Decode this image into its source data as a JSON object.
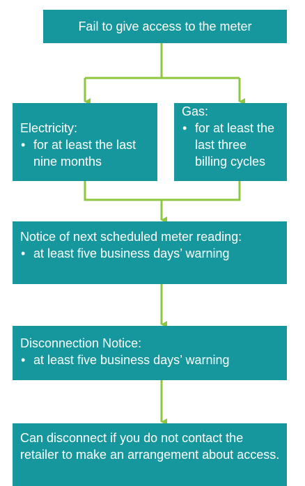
{
  "nodes": [
    {
      "text": "Fail to give access to the meter"
    },
    {
      "title": "Electricity:",
      "bullets": [
        "for at least the last nine months"
      ]
    },
    {
      "title": "Gas:",
      "bullets": [
        "for at least the last three billing cycles"
      ]
    },
    {
      "title": "Notice of next scheduled meter reading:",
      "bullets": [
        "at least five business days’ warning"
      ]
    },
    {
      "title": "Disconnection Notice:",
      "bullets": [
        "at least five business days’ warning"
      ]
    },
    {
      "text": "Can disconnect if you do not contact the retailer to make an arrangement about access."
    }
  ]
}
